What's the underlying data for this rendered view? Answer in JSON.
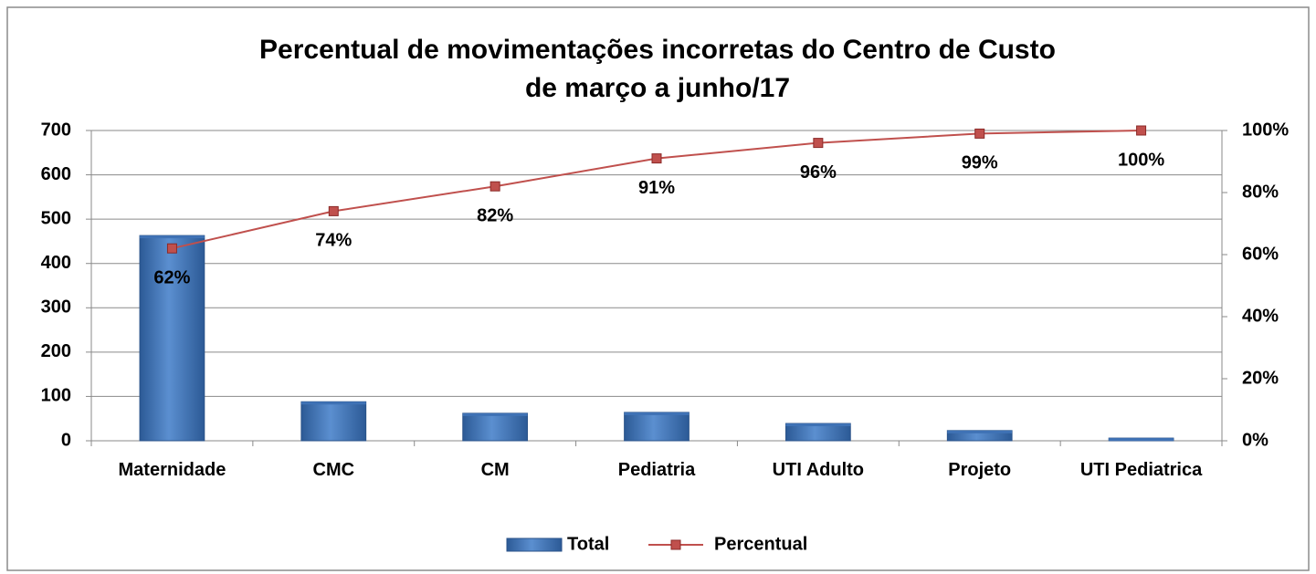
{
  "chart_data": {
    "type": "bar",
    "title": [
      "Percentual de movimentações incorretas do Centro de Custo",
      "de março a junho/17"
    ],
    "categories": [
      "Maternidade",
      "CMC",
      "CM",
      "Pediatria",
      "UTI Adulto",
      "Projeto",
      "UTI Pediatrica"
    ],
    "series": [
      {
        "name": "Total",
        "type": "bar",
        "color": "#3f72b5",
        "values": [
          463,
          88,
          62,
          64,
          39,
          23,
          6
        ]
      },
      {
        "name": "Percentual",
        "type": "line",
        "axis": "y2",
        "color": "#c0504d",
        "values": [
          62,
          74,
          82,
          91,
          96,
          99,
          100
        ],
        "value_labels": [
          "62%",
          "74%",
          "82%",
          "91%",
          "96%",
          "99%",
          "100%"
        ]
      }
    ],
    "ylim": [
      0,
      700
    ],
    "yticks": [
      0,
      100,
      200,
      300,
      400,
      500,
      600,
      700
    ],
    "y2lim": [
      0,
      100
    ],
    "y2ticks": [
      {
        "value": 0,
        "label": "0%"
      },
      {
        "value": 20,
        "label": "20%"
      },
      {
        "value": 40,
        "label": "40%"
      },
      {
        "value": 60,
        "label": "60%"
      },
      {
        "value": 80,
        "label": "80%"
      },
      {
        "value": 100,
        "label": "100%"
      }
    ],
    "grid": true,
    "legend": "bottom"
  }
}
